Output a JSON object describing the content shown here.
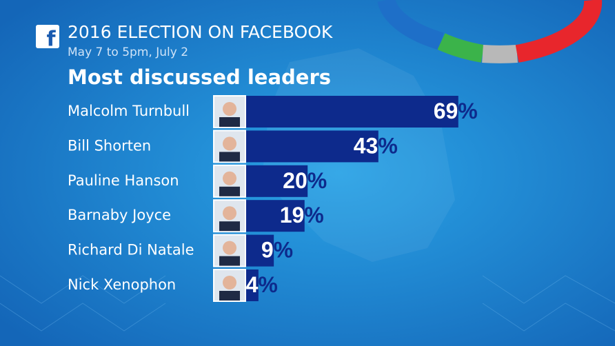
{
  "chart_data": {
    "type": "bar",
    "title": "2016 ELECTION ON FACEBOOK",
    "subtitle": "May 7 to 5pm, July 2",
    "heading": "Most discussed leaders",
    "categories": [
      "Malcolm Turnbull",
      "Bill Shorten",
      "Pauline Hanson",
      "Barnaby Joyce",
      "Richard Di Natale",
      "Nick Xenophon"
    ],
    "values": [
      69,
      43,
      20,
      19,
      9,
      4
    ],
    "value_labels": [
      "69%",
      "43%",
      "20%",
      "19%",
      "9%",
      "4%"
    ],
    "color": "#0d2a8c"
  }
}
